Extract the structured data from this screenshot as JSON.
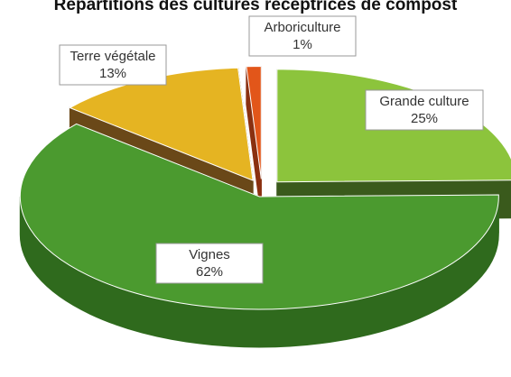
{
  "chart_data": {
    "type": "pie3d",
    "title": "Répartitions des cultures réceptrices de compost",
    "categories": [
      "Grande culture",
      "Vignes",
      "Terre végétale",
      "Arboriculture"
    ],
    "values": [
      25,
      62,
      13,
      1
    ],
    "value_labels": [
      "25%",
      "62%",
      "13%",
      "1%"
    ],
    "colors": [
      "#8cc43c",
      "#4b9a2f",
      "#e5b422",
      "#e2561a"
    ],
    "side_colors": [
      "#3a5a1c",
      "#2f6a1d",
      "#6a4818",
      "#8a3010"
    ]
  }
}
